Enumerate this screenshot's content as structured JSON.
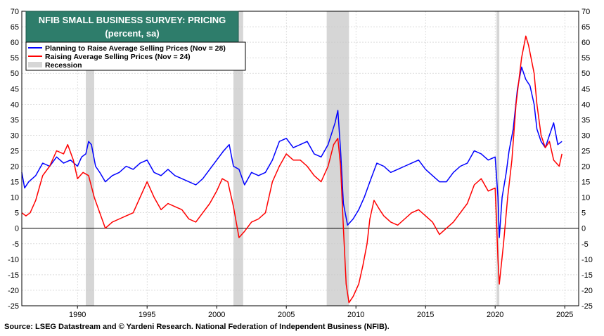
{
  "colors": {
    "series_blue": "#0000ff",
    "series_red": "#ff0000",
    "recession": "#d6d6d6",
    "title_bg": "#2e7d6b",
    "grid": "#c8c8c8"
  },
  "source_text": "Source: LSEG Datastream and © Yardeni Research. National Federation of Independent Business (NFIB).",
  "chart_data": {
    "type": "line",
    "title": "NFIB SMALL BUSINESS SURVEY: PRICING",
    "subtitle": "(percent, sa)",
    "xlim": [
      1986.0,
      2026.0
    ],
    "ylim": [
      -25,
      70
    ],
    "x_ticks": [
      1990,
      1995,
      2000,
      2005,
      2010,
      2015,
      2020,
      2025
    ],
    "y_ticks": [
      -25,
      -20,
      -15,
      -10,
      -5,
      0,
      5,
      10,
      15,
      20,
      25,
      30,
      35,
      40,
      45,
      50,
      55,
      60,
      65,
      70
    ],
    "grid": true,
    "legend_position": "top-left",
    "legend_recession_label": "Recession",
    "recessions": [
      [
        1990.6,
        1991.2
      ],
      [
        2001.2,
        2001.9
      ],
      [
        2007.9,
        2009.5
      ],
      [
        2020.1,
        2020.3
      ]
    ],
    "series": [
      {
        "name": "Planning to Raise Average Selling Prices  (Nov = 28)",
        "color": "#0000ff",
        "points": [
          [
            1986.0,
            18
          ],
          [
            1986.2,
            13
          ],
          [
            1986.5,
            15
          ],
          [
            1987.0,
            17
          ],
          [
            1987.5,
            21
          ],
          [
            1988.0,
            20
          ],
          [
            1988.5,
            23
          ],
          [
            1989.0,
            21
          ],
          [
            1989.5,
            22
          ],
          [
            1990.0,
            20
          ],
          [
            1990.3,
            23
          ],
          [
            1990.6,
            24
          ],
          [
            1990.8,
            28
          ],
          [
            1991.0,
            27
          ],
          [
            1991.3,
            20
          ],
          [
            1991.6,
            18
          ],
          [
            1992.0,
            15
          ],
          [
            1992.5,
            17
          ],
          [
            1993.0,
            18
          ],
          [
            1993.5,
            20
          ],
          [
            1994.0,
            19
          ],
          [
            1994.5,
            21
          ],
          [
            1995.0,
            22
          ],
          [
            1995.5,
            18
          ],
          [
            1996.0,
            17
          ],
          [
            1996.5,
            19
          ],
          [
            1997.0,
            17
          ],
          [
            1997.5,
            16
          ],
          [
            1998.0,
            15
          ],
          [
            1998.5,
            14
          ],
          [
            1999.0,
            16
          ],
          [
            1999.5,
            19
          ],
          [
            2000.0,
            22
          ],
          [
            2000.5,
            25
          ],
          [
            2000.9,
            27
          ],
          [
            2001.2,
            20
          ],
          [
            2001.6,
            19
          ],
          [
            2002.0,
            14
          ],
          [
            2002.5,
            18
          ],
          [
            2003.0,
            17
          ],
          [
            2003.5,
            18
          ],
          [
            2004.0,
            22
          ],
          [
            2004.5,
            28
          ],
          [
            2005.0,
            29
          ],
          [
            2005.5,
            26
          ],
          [
            2006.0,
            27
          ],
          [
            2006.5,
            28
          ],
          [
            2007.0,
            24
          ],
          [
            2007.5,
            23
          ],
          [
            2008.0,
            27
          ],
          [
            2008.5,
            34
          ],
          [
            2008.7,
            38
          ],
          [
            2008.9,
            25
          ],
          [
            2009.1,
            8
          ],
          [
            2009.4,
            1
          ],
          [
            2009.8,
            3
          ],
          [
            2010.2,
            6
          ],
          [
            2010.6,
            10
          ],
          [
            2011.0,
            15
          ],
          [
            2011.5,
            21
          ],
          [
            2012.0,
            20
          ],
          [
            2012.5,
            18
          ],
          [
            2013.0,
            19
          ],
          [
            2013.5,
            20
          ],
          [
            2014.0,
            21
          ],
          [
            2014.5,
            22
          ],
          [
            2015.0,
            19
          ],
          [
            2015.5,
            17
          ],
          [
            2016.0,
            15
          ],
          [
            2016.5,
            15
          ],
          [
            2017.0,
            18
          ],
          [
            2017.5,
            20
          ],
          [
            2018.0,
            21
          ],
          [
            2018.5,
            25
          ],
          [
            2019.0,
            24
          ],
          [
            2019.5,
            22
          ],
          [
            2020.0,
            23
          ],
          [
            2020.2,
            10
          ],
          [
            2020.3,
            -3
          ],
          [
            2020.5,
            10
          ],
          [
            2020.8,
            18
          ],
          [
            2021.0,
            25
          ],
          [
            2021.3,
            32
          ],
          [
            2021.6,
            45
          ],
          [
            2021.9,
            52
          ],
          [
            2022.2,
            48
          ],
          [
            2022.5,
            46
          ],
          [
            2022.8,
            40
          ],
          [
            2023.0,
            32
          ],
          [
            2023.3,
            28
          ],
          [
            2023.6,
            26
          ],
          [
            2023.9,
            30
          ],
          [
            2024.2,
            34
          ],
          [
            2024.5,
            27
          ],
          [
            2024.8,
            28
          ]
        ]
      },
      {
        "name": "Raising Average Selling Prices (Nov = 24)",
        "color": "#ff0000",
        "points": [
          [
            1986.0,
            5
          ],
          [
            1986.3,
            4
          ],
          [
            1986.6,
            5
          ],
          [
            1987.0,
            9
          ],
          [
            1987.5,
            17
          ],
          [
            1988.0,
            20
          ],
          [
            1988.5,
            25
          ],
          [
            1989.0,
            24
          ],
          [
            1989.3,
            27
          ],
          [
            1989.7,
            22
          ],
          [
            1990.0,
            16
          ],
          [
            1990.4,
            18
          ],
          [
            1990.8,
            17
          ],
          [
            1991.2,
            10
          ],
          [
            1991.6,
            5
          ],
          [
            1992.0,
            0
          ],
          [
            1992.5,
            2
          ],
          [
            1993.0,
            3
          ],
          [
            1993.5,
            4
          ],
          [
            1994.0,
            5
          ],
          [
            1994.5,
            10
          ],
          [
            1995.0,
            15
          ],
          [
            1995.5,
            10
          ],
          [
            1996.0,
            6
          ],
          [
            1996.5,
            8
          ],
          [
            1997.0,
            7
          ],
          [
            1997.5,
            6
          ],
          [
            1998.0,
            3
          ],
          [
            1998.5,
            2
          ],
          [
            1999.0,
            5
          ],
          [
            1999.5,
            8
          ],
          [
            2000.0,
            12
          ],
          [
            2000.4,
            16
          ],
          [
            2000.8,
            15
          ],
          [
            2001.2,
            7
          ],
          [
            2001.6,
            -3
          ],
          [
            2002.0,
            -1
          ],
          [
            2002.5,
            2
          ],
          [
            2003.0,
            3
          ],
          [
            2003.5,
            5
          ],
          [
            2004.0,
            15
          ],
          [
            2004.5,
            20
          ],
          [
            2005.0,
            24
          ],
          [
            2005.5,
            22
          ],
          [
            2006.0,
            22
          ],
          [
            2006.5,
            20
          ],
          [
            2007.0,
            17
          ],
          [
            2007.5,
            15
          ],
          [
            2008.0,
            20
          ],
          [
            2008.4,
            27
          ],
          [
            2008.7,
            29
          ],
          [
            2008.9,
            20
          ],
          [
            2009.1,
            0
          ],
          [
            2009.3,
            -18
          ],
          [
            2009.5,
            -24
          ],
          [
            2009.8,
            -22
          ],
          [
            2010.2,
            -18
          ],
          [
            2010.5,
            -12
          ],
          [
            2010.8,
            -5
          ],
          [
            2011.0,
            3
          ],
          [
            2011.3,
            9
          ],
          [
            2011.7,
            6
          ],
          [
            2012.0,
            4
          ],
          [
            2012.5,
            2
          ],
          [
            2013.0,
            1
          ],
          [
            2013.5,
            3
          ],
          [
            2014.0,
            5
          ],
          [
            2014.5,
            6
          ],
          [
            2015.0,
            4
          ],
          [
            2015.5,
            2
          ],
          [
            2016.0,
            -2
          ],
          [
            2016.5,
            0
          ],
          [
            2017.0,
            2
          ],
          [
            2017.5,
            5
          ],
          [
            2018.0,
            8
          ],
          [
            2018.5,
            14
          ],
          [
            2019.0,
            16
          ],
          [
            2019.5,
            12
          ],
          [
            2020.0,
            13
          ],
          [
            2020.2,
            -10
          ],
          [
            2020.3,
            -18
          ],
          [
            2020.6,
            -5
          ],
          [
            2020.9,
            10
          ],
          [
            2021.2,
            22
          ],
          [
            2021.5,
            40
          ],
          [
            2021.9,
            55
          ],
          [
            2022.2,
            62
          ],
          [
            2022.4,
            59
          ],
          [
            2022.8,
            50
          ],
          [
            2023.0,
            40
          ],
          [
            2023.3,
            30
          ],
          [
            2023.6,
            26
          ],
          [
            2023.9,
            28
          ],
          [
            2024.2,
            22
          ],
          [
            2024.6,
            20
          ],
          [
            2024.8,
            24
          ]
        ]
      }
    ]
  }
}
